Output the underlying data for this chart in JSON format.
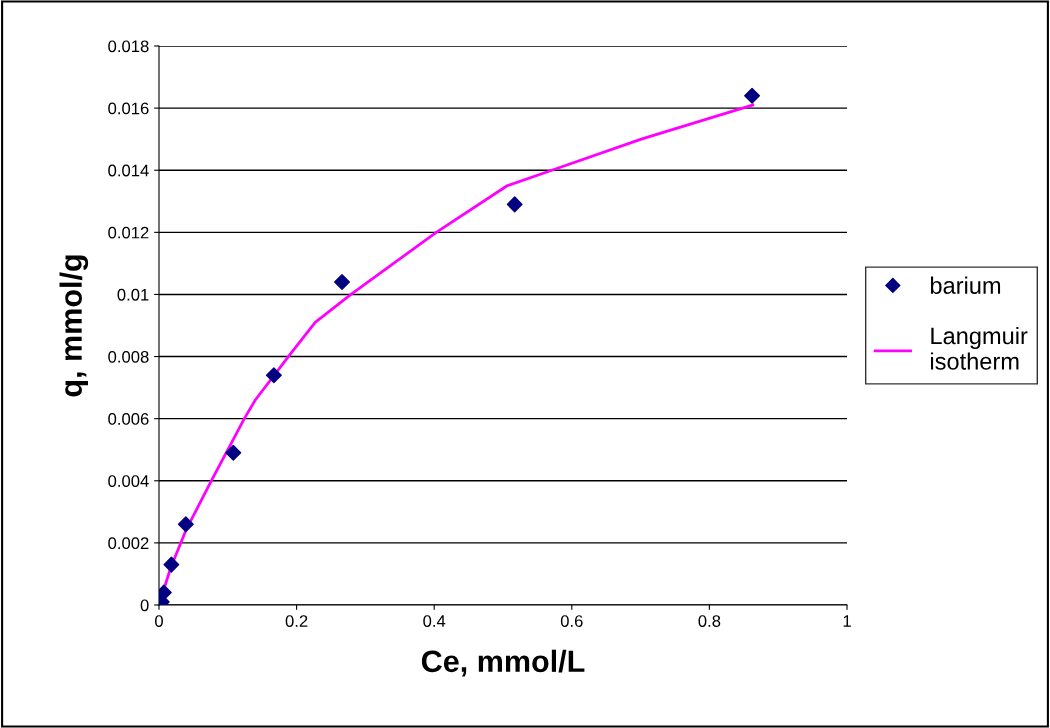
{
  "chart_data": {
    "type": "scatter",
    "xlabel": "Ce, mmol/L",
    "ylabel": "q, mmol/g",
    "xlim": [
      0,
      1
    ],
    "xticks": [
      0,
      0.2,
      0.4,
      0.6,
      0.8,
      1
    ],
    "ylim": [
      0,
      0.018
    ],
    "yticks": [
      0,
      0.002,
      0.004,
      0.006,
      0.008,
      0.01,
      0.012,
      0.014,
      0.016,
      0.018
    ],
    "grid": "y",
    "legend": "right",
    "series": [
      {
        "name": "barium",
        "marker": "diamond",
        "color": "#000080",
        "x": [
          0.004,
          0.007,
          0.018,
          0.039,
          0.108,
          0.167,
          0.266,
          0.517,
          0.862
        ],
        "values": [
          0.0001,
          0.0004,
          0.0013,
          0.0026,
          0.0049,
          0.0074,
          0.0104,
          0.0129,
          0.0164
        ]
      },
      {
        "name": "Langmuir\nisotherm",
        "type": "line",
        "marker": "none",
        "line_style": "solid",
        "color": "#ff00ff",
        "x": [
          0.004,
          0.007,
          0.017,
          0.039,
          0.076,
          0.124,
          0.14,
          0.188,
          0.227,
          0.279,
          0.403,
          0.506,
          0.571,
          0.701,
          0.863
        ],
        "values": [
          0.0002,
          0.0005,
          0.0012,
          0.0024,
          0.004,
          0.006,
          0.0066,
          0.008,
          0.0091,
          0.01,
          0.012,
          0.0135,
          0.014,
          0.015,
          0.0161
        ]
      }
    ]
  }
}
